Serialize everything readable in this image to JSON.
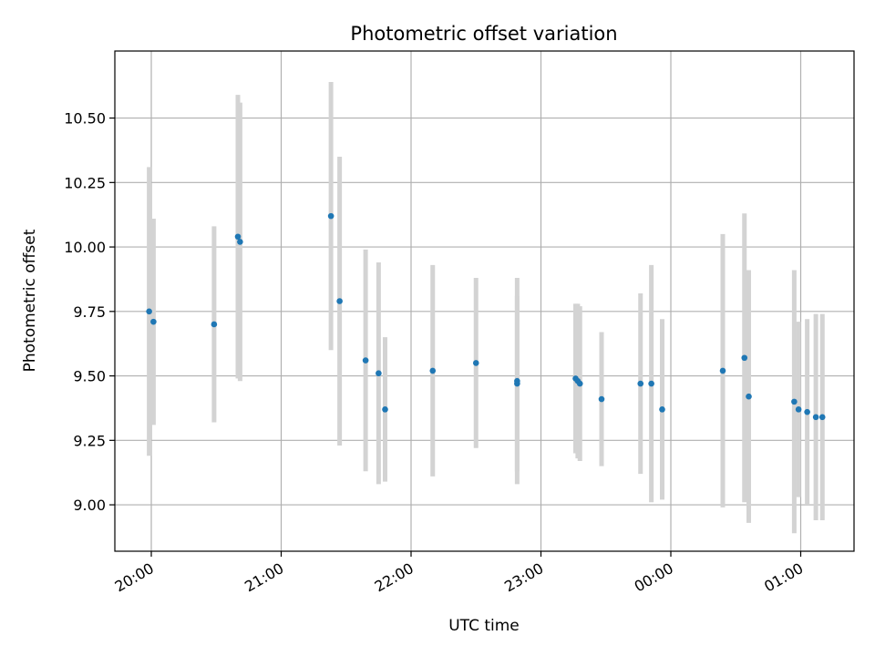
{
  "chart_data": {
    "type": "scatter",
    "title": "Photometric offset variation",
    "xlabel": "UTC time",
    "ylabel": "Photometric offset",
    "x_ticks": [
      "20:00",
      "21:00",
      "22:00",
      "23:00",
      "00:00",
      "01:00"
    ],
    "y_ticks": [
      "9.00",
      "9.25",
      "9.50",
      "9.75",
      "10.00",
      "10.25",
      "10.50"
    ],
    "ylim": [
      8.82,
      10.76
    ],
    "grid": true,
    "colors": {
      "point": "#1f77b4",
      "errorbar": "#d3d3d3",
      "grid": "#b0b0b0",
      "axes": "#000000"
    },
    "points": [
      {
        "x": "19:59",
        "y": 9.75,
        "err": 0.56
      },
      {
        "x": "20:01",
        "y": 9.71,
        "err": 0.4
      },
      {
        "x": "20:29",
        "y": 9.7,
        "err": 0.38
      },
      {
        "x": "20:40",
        "y": 10.04,
        "err": 0.55
      },
      {
        "x": "20:41",
        "y": 10.02,
        "err": 0.54
      },
      {
        "x": "21:23",
        "y": 10.12,
        "err": 0.52
      },
      {
        "x": "21:27",
        "y": 9.79,
        "err": 0.56
      },
      {
        "x": "21:39",
        "y": 9.56,
        "err": 0.43
      },
      {
        "x": "21:45",
        "y": 9.51,
        "err": 0.43
      },
      {
        "x": "21:48",
        "y": 9.37,
        "err": 0.28
      },
      {
        "x": "22:10",
        "y": 9.52,
        "err": 0.41
      },
      {
        "x": "22:30",
        "y": 9.55,
        "err": 0.33
      },
      {
        "x": "22:49",
        "y": 9.48,
        "err": 0.4
      },
      {
        "x": "22:49",
        "y": 9.47,
        "err": 0.34
      },
      {
        "x": "23:16",
        "y": 9.49,
        "err": 0.29
      },
      {
        "x": "23:17",
        "y": 9.48,
        "err": 0.3
      },
      {
        "x": "23:18",
        "y": 9.47,
        "err": 0.3
      },
      {
        "x": "23:28",
        "y": 9.41,
        "err": 0.26
      },
      {
        "x": "23:46",
        "y": 9.47,
        "err": 0.35
      },
      {
        "x": "23:51",
        "y": 9.47,
        "err": 0.46
      },
      {
        "x": "23:56",
        "y": 9.37,
        "err": 0.35
      },
      {
        "x": "00:24",
        "y": 9.52,
        "err": 0.53
      },
      {
        "x": "00:34",
        "y": 9.57,
        "err": 0.56
      },
      {
        "x": "00:36",
        "y": 9.42,
        "err": 0.49
      },
      {
        "x": "00:57",
        "y": 9.4,
        "err": 0.51
      },
      {
        "x": "00:59",
        "y": 9.37,
        "err": 0.34
      },
      {
        "x": "01:03",
        "y": 9.36,
        "err": 0.36
      },
      {
        "x": "01:07",
        "y": 9.34,
        "err": 0.4
      },
      {
        "x": "01:10",
        "y": 9.34,
        "err": 0.4
      }
    ]
  }
}
